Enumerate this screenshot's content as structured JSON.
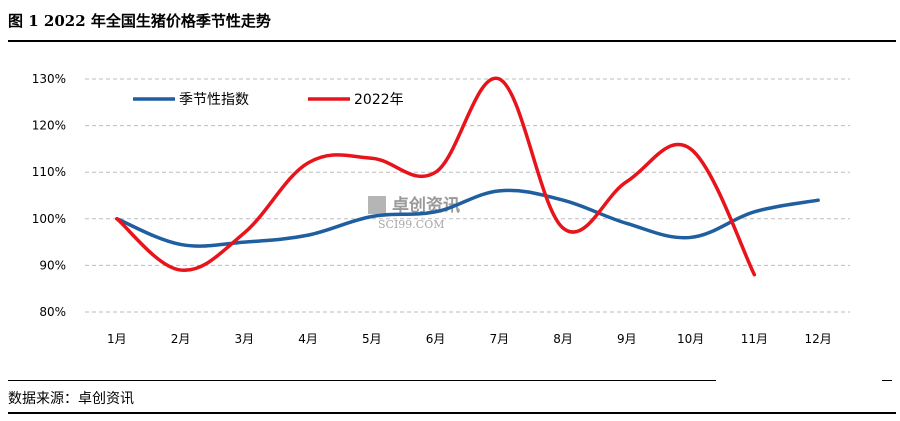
{
  "figure": {
    "title": "图 1  2022 年全国生猪价格季节性走势",
    "source": "数据来源：卓创资讯"
  },
  "watermark": {
    "text": "卓创资讯",
    "sub": "SCI99.COM"
  },
  "colors": {
    "seasonal": "#1f5fa0",
    "y2022": "#e8141c",
    "grid": "#bdbdbd"
  },
  "chart_data": {
    "type": "line",
    "title": "",
    "xlabel": "",
    "ylabel": "",
    "categories": [
      "1月",
      "2月",
      "3月",
      "4月",
      "5月",
      "6月",
      "7月",
      "8月",
      "9月",
      "10月",
      "11月",
      "12月"
    ],
    "yticks": [
      "80%",
      "90%",
      "100%",
      "110%",
      "120%",
      "130%"
    ],
    "ylim": [
      80,
      130
    ],
    "grid": "horizontal dashed",
    "legend_position": "top-left",
    "series": [
      {
        "name": "季节性指数",
        "color": "#1f5fa0",
        "values": [
          100,
          94.5,
          95,
          96.5,
          100.5,
          101.5,
          106,
          104,
          99,
          96,
          101.5,
          104
        ]
      },
      {
        "name": "2022年",
        "color": "#e8141c",
        "values": [
          100,
          89,
          97,
          112,
          113,
          110,
          130,
          98,
          108,
          115,
          88,
          null
        ]
      }
    ]
  }
}
